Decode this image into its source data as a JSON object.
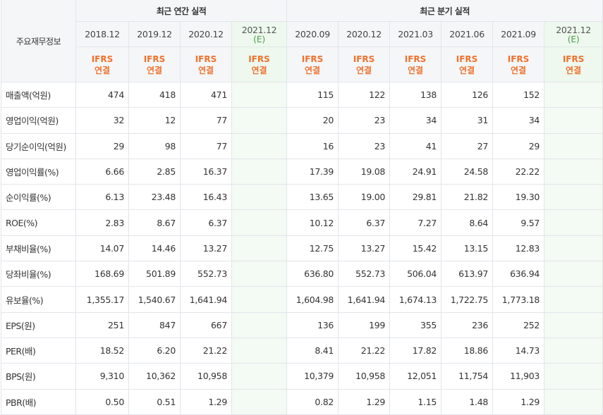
{
  "header": {
    "row_label_title": "주요재무정보",
    "annual_group": "최근 연간 실적",
    "quarter_group": "최근 분기 실적",
    "annual_periods": [
      "2018.12",
      "2019.12",
      "2020.12"
    ],
    "annual_estimate_period": "2021.12",
    "quarter_periods": [
      "2020.09",
      "2020.12",
      "2021.03",
      "2021.06",
      "2021.09"
    ],
    "quarter_estimate_period": "2021.12",
    "estimate_mark": "(E)",
    "ifrs_line1": "IFRS",
    "ifrs_line2": "연결"
  },
  "colors": {
    "ifrs_text": "#f0712c",
    "estimate_mark": "#4aa34a",
    "header_bg": "#f5f6f8",
    "estimate_bg": "#eef8ee"
  },
  "rows": [
    {
      "label": "매출액(억원)",
      "annual": [
        "474",
        "418",
        "471"
      ],
      "quarter": [
        "115",
        "122",
        "138",
        "126",
        "152"
      ]
    },
    {
      "label": "영업이익(억원)",
      "annual": [
        "32",
        "12",
        "77"
      ],
      "quarter": [
        "20",
        "23",
        "34",
        "31",
        "34"
      ]
    },
    {
      "label": "당기순이익(억원)",
      "annual": [
        "29",
        "98",
        "77"
      ],
      "quarter": [
        "16",
        "23",
        "41",
        "27",
        "29"
      ]
    },
    {
      "label": "영업이익률(%)",
      "annual": [
        "6.66",
        "2.85",
        "16.37"
      ],
      "quarter": [
        "17.39",
        "19.08",
        "24.91",
        "24.58",
        "22.22"
      ]
    },
    {
      "label": "순이익률(%)",
      "annual": [
        "6.13",
        "23.48",
        "16.43"
      ],
      "quarter": [
        "13.65",
        "19.00",
        "29.81",
        "21.82",
        "19.30"
      ]
    },
    {
      "label": "ROE(%)",
      "annual": [
        "2.83",
        "8.67",
        "6.37"
      ],
      "quarter": [
        "10.12",
        "6.37",
        "7.27",
        "8.64",
        "9.57"
      ]
    },
    {
      "label": "부채비율(%)",
      "annual": [
        "14.07",
        "14.46",
        "13.27"
      ],
      "quarter": [
        "12.75",
        "13.27",
        "15.42",
        "13.15",
        "12.83"
      ]
    },
    {
      "label": "당좌비율(%)",
      "annual": [
        "168.69",
        "501.89",
        "552.73"
      ],
      "quarter": [
        "636.80",
        "552.73",
        "506.04",
        "613.97",
        "636.94"
      ]
    },
    {
      "label": "유보율(%)",
      "annual": [
        "1,355.17",
        "1,540.67",
        "1,641.94"
      ],
      "quarter": [
        "1,604.98",
        "1,641.94",
        "1,674.13",
        "1,722.75",
        "1,773.18"
      ]
    },
    {
      "label": "EPS(원)",
      "annual": [
        "251",
        "847",
        "667"
      ],
      "quarter": [
        "136",
        "199",
        "355",
        "236",
        "252"
      ]
    },
    {
      "label": "PER(배)",
      "annual": [
        "18.52",
        "6.20",
        "21.22"
      ],
      "quarter": [
        "8.41",
        "21.22",
        "17.82",
        "18.86",
        "14.73"
      ]
    },
    {
      "label": "BPS(원)",
      "annual": [
        "9,310",
        "10,362",
        "10,958"
      ],
      "quarter": [
        "10,379",
        "10,958",
        "12,051",
        "11,754",
        "11,903"
      ]
    },
    {
      "label": "PBR(배)",
      "annual": [
        "0.50",
        "0.51",
        "1.29"
      ],
      "quarter": [
        "0.82",
        "1.29",
        "1.15",
        "1.48",
        "1.29"
      ]
    }
  ]
}
